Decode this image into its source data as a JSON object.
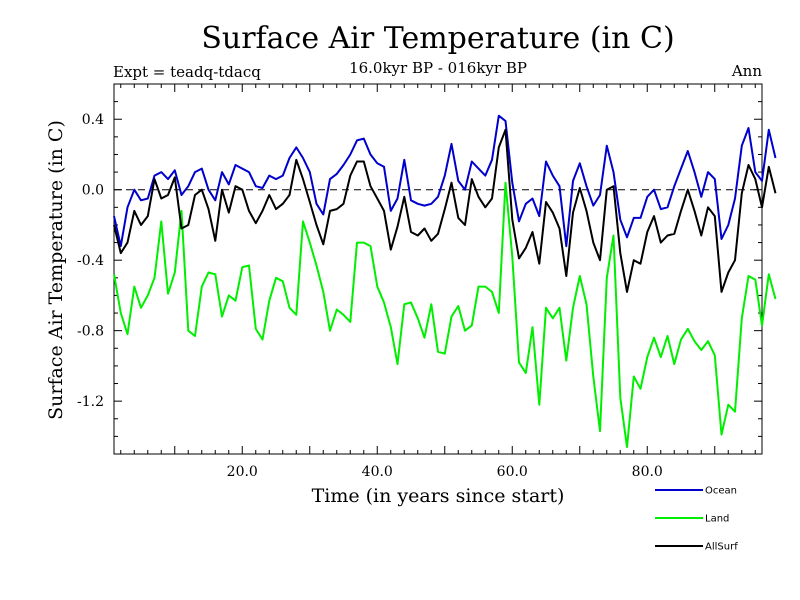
{
  "chart_data": {
    "type": "line",
    "title": "Surface Air Temperature (in C)",
    "subtitle": "16.0kyr BP - 016kyr BP",
    "expt_label": "Expt = teadq-tdacq",
    "season_label": "Ann",
    "xlabel": "Time (in years since start)",
    "ylabel": "Surface Air Temperature (in C)",
    "xlim": [
      1,
      97
    ],
    "ylim": [
      -1.5,
      0.6
    ],
    "xticks": [
      20,
      40,
      60,
      80
    ],
    "xtick_labels": [
      "20.0",
      "40.0",
      "60.0",
      "80.0"
    ],
    "yticks": [
      0.4,
      0,
      -0.4,
      -0.8,
      -1.2
    ],
    "ytick_labels": [
      "0.4",
      "0.0",
      "-0.4",
      "-0.8",
      "-1.2"
    ],
    "reference_line": 0,
    "x_start": 1,
    "series": [
      {
        "name": "Ocean",
        "color": "#0000cc",
        "values": [
          -0.15,
          -0.32,
          -0.1,
          0,
          -0.06,
          -0.05,
          0.08,
          0.1,
          0.06,
          0.11,
          -0.03,
          0.02,
          0.1,
          0.12,
          0,
          -0.06,
          0.1,
          0.03,
          0.14,
          0.12,
          0.1,
          0.02,
          0.01,
          0.08,
          0.06,
          0.08,
          0.18,
          0.24,
          0.18,
          0.1,
          -0.08,
          -0.14,
          0.06,
          0.09,
          0.14,
          0.2,
          0.28,
          0.29,
          0.2,
          0.15,
          0.13,
          -0.12,
          -0.05,
          0.17,
          -0.06,
          -0.08,
          -0.09,
          -0.08,
          -0.04,
          0.08,
          0.26,
          0.05,
          0,
          0.16,
          0.12,
          0.08,
          0.17,
          0.42,
          0.39,
          0.04,
          -0.18,
          -0.08,
          -0.05,
          -0.15,
          0.16,
          0.08,
          0.02,
          -0.32,
          0.05,
          0.15,
          0.02,
          -0.09,
          -0.03,
          0.25,
          0.1,
          -0.17,
          -0.27,
          -0.16,
          -0.16,
          -0.04,
          0,
          -0.11,
          -0.1,
          0.02,
          0.12,
          0.22,
          0.1,
          -0.04,
          0.1,
          0.06,
          -0.28,
          -0.2,
          -0.05,
          0.25,
          0.35,
          0.1,
          0.05,
          0.34,
          0.18
        ]
      },
      {
        "name": "Land",
        "color": "#00ee00",
        "values": [
          -0.48,
          -0.7,
          -0.82,
          -0.55,
          -0.67,
          -0.6,
          -0.5,
          -0.18,
          -0.59,
          -0.47,
          -0.12,
          -0.8,
          -0.83,
          -0.55,
          -0.47,
          -0.48,
          -0.72,
          -0.6,
          -0.63,
          -0.44,
          -0.43,
          -0.79,
          -0.85,
          -0.63,
          -0.5,
          -0.52,
          -0.67,
          -0.71,
          -0.18,
          -0.3,
          -0.43,
          -0.58,
          -0.8,
          -0.68,
          -0.71,
          -0.75,
          -0.3,
          -0.3,
          -0.32,
          -0.55,
          -0.64,
          -0.78,
          -0.99,
          -0.65,
          -0.64,
          -0.73,
          -0.84,
          -0.65,
          -0.92,
          -0.93,
          -0.72,
          -0.66,
          -0.8,
          -0.77,
          -0.55,
          -0.55,
          -0.58,
          -0.7,
          0.04,
          -0.38,
          -0.98,
          -1.04,
          -0.78,
          -1.22,
          -0.67,
          -0.73,
          -0.67,
          -0.97,
          -0.67,
          -0.49,
          -0.65,
          -1.06,
          -1.37,
          -0.5,
          -0.26,
          -1.18,
          -1.46,
          -1.06,
          -1.13,
          -0.95,
          -0.84,
          -0.95,
          -0.83,
          -0.99,
          -0.85,
          -0.79,
          -0.86,
          -0.91,
          -0.86,
          -0.94,
          -1.39,
          -1.22,
          -1.26,
          -0.73,
          -0.49,
          -0.51,
          -0.77,
          -0.48,
          -0.62
        ]
      },
      {
        "name": "AllSurf",
        "color": "#000000",
        "values": [
          -0.2,
          -0.36,
          -0.3,
          -0.12,
          -0.2,
          -0.15,
          0.06,
          -0.05,
          -0.03,
          0.07,
          -0.22,
          -0.2,
          -0.03,
          0,
          -0.11,
          -0.29,
          0,
          -0.13,
          0.02,
          0,
          -0.12,
          -0.19,
          -0.12,
          -0.03,
          -0.11,
          -0.08,
          -0.03,
          0.17,
          0.06,
          -0.07,
          -0.2,
          -0.31,
          -0.12,
          -0.11,
          -0.08,
          0.08,
          0.16,
          0.16,
          0.02,
          -0.05,
          -0.12,
          -0.34,
          -0.21,
          -0.04,
          -0.24,
          -0.26,
          -0.22,
          -0.29,
          -0.25,
          -0.11,
          0.04,
          -0.16,
          -0.2,
          0.06,
          -0.04,
          -0.1,
          -0.05,
          0.24,
          0.34,
          -0.17,
          -0.39,
          -0.33,
          -0.24,
          -0.42,
          -0.07,
          -0.13,
          -0.22,
          -0.49,
          -0.13,
          0.01,
          -0.12,
          -0.3,
          -0.4,
          0,
          0.02,
          -0.36,
          -0.58,
          -0.4,
          -0.42,
          -0.24,
          -0.15,
          -0.3,
          -0.26,
          -0.25,
          -0.12,
          0,
          -0.12,
          -0.26,
          -0.1,
          -0.15,
          -0.58,
          -0.47,
          -0.4,
          -0.02,
          0.14,
          0.06,
          -0.1,
          0.13,
          -0.02
        ]
      }
    ]
  }
}
